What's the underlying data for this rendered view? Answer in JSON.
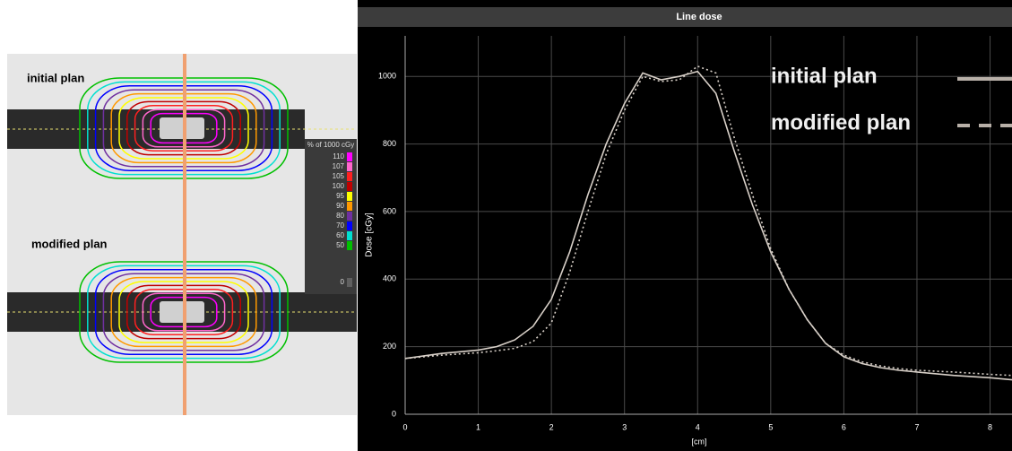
{
  "image_panel": {
    "labels": [
      "initial plan",
      "modified plan"
    ],
    "legend_title": "% of 1000 cGy",
    "levels": [
      110,
      107,
      105,
      100,
      95,
      90,
      80,
      70,
      60,
      50,
      0
    ],
    "level_colors": [
      "#ff00ff",
      "#ff66cc",
      "#ff2020",
      "#c00000",
      "#ffff00",
      "#ff9900",
      "#7030a0",
      "#0000ff",
      "#00e0d0",
      "#00c000",
      "#606060"
    ]
  },
  "chart_data": {
    "type": "line",
    "title": "Line dose",
    "ylabel": "Dose [cGy]",
    "xlabel": "[cm]",
    "x": [
      0,
      0.5,
      1,
      1.25,
      1.5,
      1.75,
      2,
      2.25,
      2.5,
      2.75,
      3,
      3.25,
      3.5,
      3.75,
      4,
      4.25,
      4.5,
      4.75,
      5,
      5.25,
      5.5,
      5.75,
      6,
      6.25,
      6.5,
      6.75,
      7,
      7.5,
      8,
      8.3
    ],
    "series": [
      {
        "name": "initial plan",
        "color": "#d8d0c8",
        "style": "solid",
        "values": [
          165,
          180,
          190,
          200,
          220,
          260,
          340,
          480,
          650,
          800,
          920,
          1010,
          990,
          1000,
          1015,
          950,
          780,
          620,
          480,
          370,
          280,
          210,
          170,
          150,
          138,
          130,
          125,
          115,
          108,
          102
        ]
      },
      {
        "name": "modified plan",
        "color": "#d8d0c8",
        "style": "dotted",
        "values": [
          165,
          175,
          182,
          188,
          195,
          215,
          270,
          420,
          600,
          770,
          900,
          1000,
          985,
          990,
          1030,
          1010,
          820,
          650,
          490,
          370,
          280,
          210,
          175,
          155,
          143,
          135,
          130,
          125,
          118,
          115
        ]
      }
    ],
    "xlim": [
      0,
      8.3
    ],
    "ylim": [
      0,
      1120
    ],
    "xticks": [
      0,
      1,
      2,
      3,
      4,
      5,
      6,
      7,
      8
    ],
    "yticks": [
      0,
      200,
      400,
      600,
      800,
      1000
    ],
    "grid": true,
    "legend": "upper right"
  }
}
